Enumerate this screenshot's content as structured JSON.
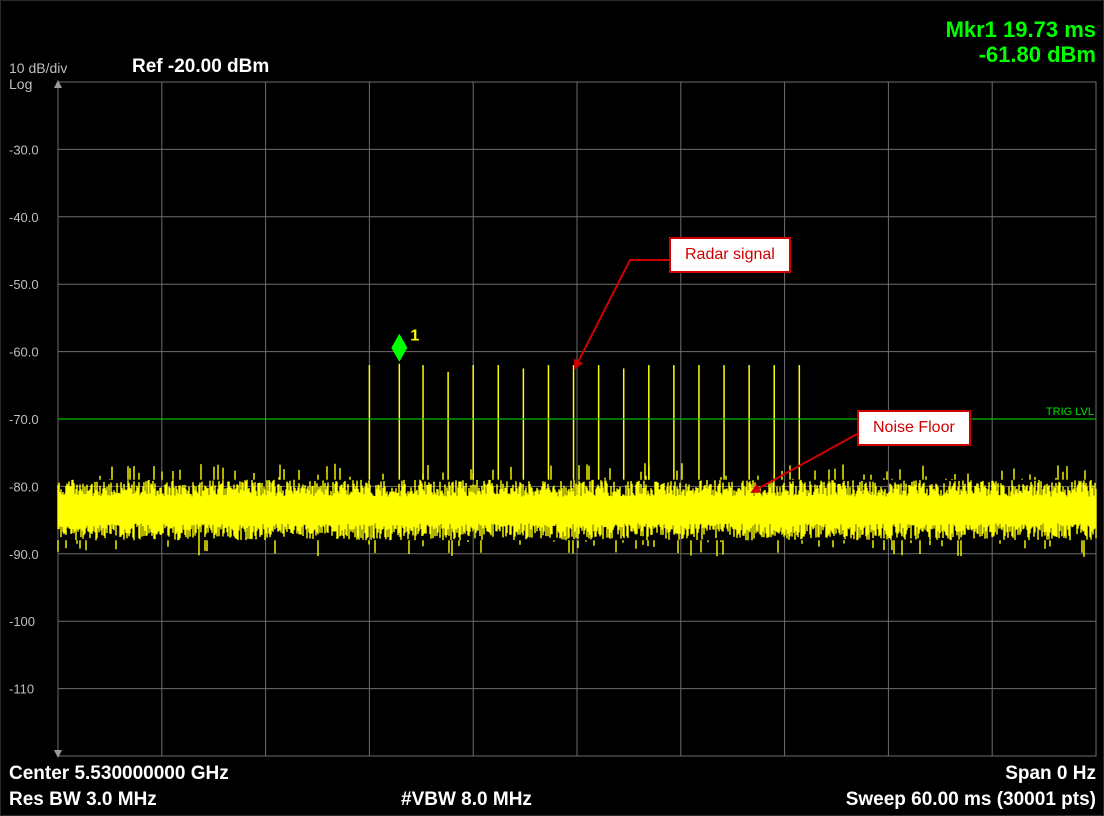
{
  "header": {
    "scale": "10 dB/div",
    "mode": "Log",
    "ref": "Ref -20.00 dBm",
    "marker_line1": "Mkr1 19.73 ms",
    "marker_line2": "-61.80 dBm"
  },
  "footer": {
    "center": "Center 5.530000000 GHz",
    "res_bw": "Res BW 3.0 MHz",
    "vbw": "#VBW 8.0 MHz",
    "span": "Span 0 Hz",
    "sweep": "Sweep  60.00 ms (30001 pts)"
  },
  "annotations": {
    "radar": "Radar signal",
    "noise": "Noise Floor",
    "trig": "TRIG LVL"
  },
  "colors": {
    "trace": "#ffff00",
    "marker": "#00ff00",
    "trigger_line": "#00c000",
    "grid": "#6e6e6e",
    "callout_border": "#d00000"
  },
  "chart_data": {
    "type": "line",
    "xlabel": "",
    "ylabel": "",
    "xlim": [
      0,
      60
    ],
    "ylim": [
      -120,
      -20
    ],
    "y_ticks": [
      {
        "value": -30,
        "label": "-30.0"
      },
      {
        "value": -40,
        "label": "-40.0"
      },
      {
        "value": -50,
        "label": "-50.0"
      },
      {
        "value": -60,
        "label": "-60.0"
      },
      {
        "value": -70,
        "label": "-70.0"
      },
      {
        "value": -80,
        "label": "-80.0"
      },
      {
        "value": -90,
        "label": "-90.0"
      },
      {
        "value": -100,
        "label": "-100"
      },
      {
        "value": -110,
        "label": "-110"
      }
    ],
    "noise_floor": {
      "low": -88,
      "high": -79
    },
    "trigger_level": -70,
    "pulses": [
      {
        "t": 18.0,
        "level": -62.0
      },
      {
        "t": 19.73,
        "level": -61.8
      },
      {
        "t": 21.1,
        "level": -62.0
      },
      {
        "t": 22.55,
        "level": -63.0
      },
      {
        "t": 24.0,
        "level": -62.0
      },
      {
        "t": 25.45,
        "level": -62.0
      },
      {
        "t": 26.9,
        "level": -62.5
      },
      {
        "t": 28.35,
        "level": -62.0
      },
      {
        "t": 29.8,
        "level": -62.0
      },
      {
        "t": 31.25,
        "level": -62.0
      },
      {
        "t": 32.7,
        "level": -62.5
      },
      {
        "t": 34.15,
        "level": -62.0
      },
      {
        "t": 35.6,
        "level": -62.0
      },
      {
        "t": 37.05,
        "level": -62.0
      },
      {
        "t": 38.5,
        "level": -62.0
      },
      {
        "t": 39.95,
        "level": -62.0
      },
      {
        "t": 41.4,
        "level": -62.0
      },
      {
        "t": 42.85,
        "level": -62.0
      }
    ],
    "marker": {
      "id": "1",
      "t": 19.73,
      "level": -61.8
    }
  }
}
